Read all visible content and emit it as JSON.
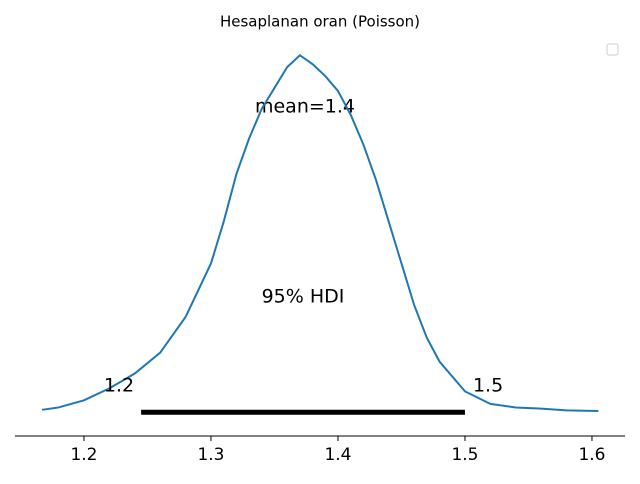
{
  "chart_data": {
    "type": "line",
    "title": "Hesaplanan oran (Poisson)",
    "x": [
      1.167,
      1.18,
      1.2,
      1.22,
      1.24,
      1.26,
      1.28,
      1.3,
      1.31,
      1.32,
      1.33,
      1.34,
      1.35,
      1.36,
      1.37,
      1.38,
      1.39,
      1.4,
      1.41,
      1.42,
      1.43,
      1.44,
      1.45,
      1.46,
      1.47,
      1.48,
      1.5,
      1.52,
      1.54,
      1.56,
      1.58,
      1.605
    ],
    "series": [
      {
        "color": "#1f77b4",
        "values": [
          0.04,
          0.08,
          0.2,
          0.4,
          0.65,
          1.0,
          1.6,
          2.5,
          3.2,
          4.0,
          4.6,
          5.1,
          5.45,
          5.8,
          6.0,
          5.85,
          5.65,
          5.4,
          5.0,
          4.5,
          3.9,
          3.2,
          2.5,
          1.8,
          1.25,
          0.85,
          0.35,
          0.14,
          0.08,
          0.06,
          0.03,
          0.02
        ]
      }
    ],
    "hdi": {
      "values": [
        1.245,
        1.5
      ],
      "value_labels": [
        "1.2",
        "1.5"
      ],
      "color": "#000000"
    },
    "annotations": [
      "mean=1.4",
      "95% HDI"
    ],
    "xlim": [
      1.1457,
      1.626
    ],
    "ylim": [
      -0.4,
      6.34
    ],
    "xticks": [
      1.2,
      1.3,
      1.4,
      1.5,
      1.6
    ]
  }
}
